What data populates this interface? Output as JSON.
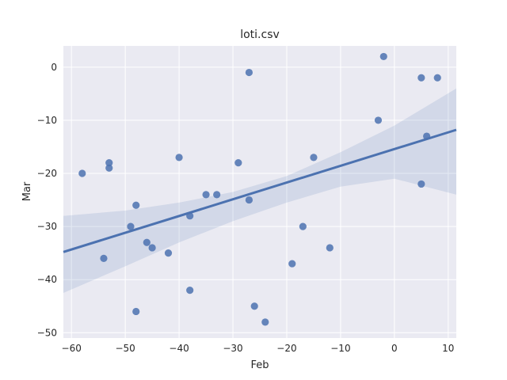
{
  "chart_data": {
    "type": "scatter",
    "title": "loti.csv",
    "xlabel": "Feb",
    "ylabel": "Mar",
    "xlim": [
      -61.5,
      11.5
    ],
    "ylim": [
      -51,
      4
    ],
    "x_ticks": [
      -60,
      -50,
      -40,
      -30,
      -20,
      -10,
      0,
      10
    ],
    "y_ticks": [
      0,
      -10,
      -20,
      -30,
      -40,
      -50
    ],
    "grid": true,
    "background": "#EAEAF2",
    "grid_color": "#FFFFFF",
    "point_color": "#4C72B0",
    "line_color": "#4C72B0",
    "band_color": "#4C72B0",
    "points": [
      {
        "x": -58,
        "y": -20
      },
      {
        "x": -54,
        "y": -36
      },
      {
        "x": -53,
        "y": -18
      },
      {
        "x": -53,
        "y": -19
      },
      {
        "x": -49,
        "y": -30
      },
      {
        "x": -48,
        "y": -26
      },
      {
        "x": -48,
        "y": -46
      },
      {
        "x": -46,
        "y": -33
      },
      {
        "x": -45,
        "y": -34
      },
      {
        "x": -42,
        "y": -35
      },
      {
        "x": -40,
        "y": -17
      },
      {
        "x": -38,
        "y": -28
      },
      {
        "x": -38,
        "y": -42
      },
      {
        "x": -35,
        "y": -24
      },
      {
        "x": -33,
        "y": -24
      },
      {
        "x": -29,
        "y": -18
      },
      {
        "x": -27,
        "y": -1
      },
      {
        "x": -27,
        "y": -25
      },
      {
        "x": -26,
        "y": -45
      },
      {
        "x": -24,
        "y": -48
      },
      {
        "x": -19,
        "y": -37
      },
      {
        "x": -17,
        "y": -30
      },
      {
        "x": -15,
        "y": -17
      },
      {
        "x": -12,
        "y": -34
      },
      {
        "x": -3,
        "y": -10
      },
      {
        "x": -2,
        "y": 2
      },
      {
        "x": 5,
        "y": -2
      },
      {
        "x": 5,
        "y": -22
      },
      {
        "x": 6,
        "y": -13
      },
      {
        "x": 8,
        "y": -2
      }
    ],
    "regression": {
      "x": [
        -61.5,
        11.5
      ],
      "y": [
        -34.8,
        -11.8
      ]
    },
    "confidence_band": {
      "x": [
        -61.5,
        -50,
        -40,
        -30,
        -20,
        -10,
        0,
        11.5
      ],
      "upper": [
        -28.0,
        -27.0,
        -25.5,
        -23.5,
        -20.5,
        -16.0,
        -11.0,
        -4.0
      ],
      "lower": [
        -42.5,
        -37.5,
        -33.0,
        -29.0,
        -25.5,
        -22.5,
        -21.0,
        -24.0
      ]
    }
  }
}
